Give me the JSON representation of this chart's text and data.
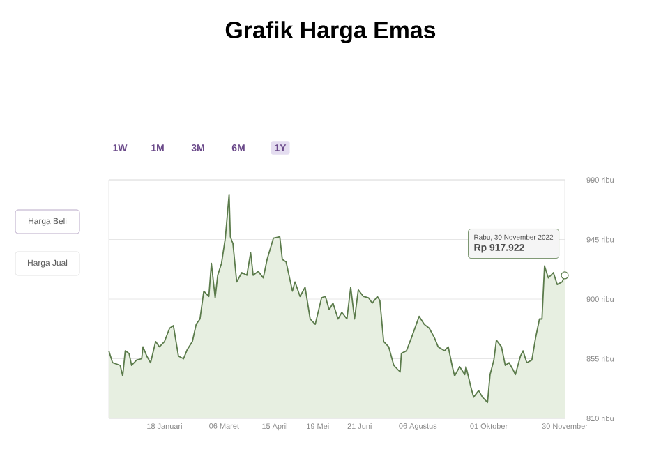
{
  "chart_data": {
    "type": "area",
    "title": "Grafik Harga Emas",
    "x": [
      "2021-12-05",
      "2021-12-08",
      "2021-12-14",
      "2021-12-16",
      "2021-12-18",
      "2021-12-21",
      "2021-12-23",
      "2021-12-27",
      "2021-12-31",
      "2022-01-01",
      "2022-01-04",
      "2022-01-07",
      "2022-01-11",
      "2022-01-14",
      "2022-01-18",
      "2022-01-22",
      "2022-01-25",
      "2022-01-29",
      "2022-02-02",
      "2022-02-05",
      "2022-02-09",
      "2022-02-12",
      "2022-02-15",
      "2022-02-18",
      "2022-02-22",
      "2022-02-24",
      "2022-02-27",
      "2022-03-01",
      "2022-03-04",
      "2022-03-07",
      "2022-03-10",
      "2022-03-11",
      "2022-03-13",
      "2022-03-16",
      "2022-03-20",
      "2022-03-24",
      "2022-03-27",
      "2022-03-29",
      "2022-04-02",
      "2022-04-06",
      "2022-04-09",
      "2022-04-14",
      "2022-04-19",
      "2022-04-21",
      "2022-04-24",
      "2022-04-29",
      "2022-05-01",
      "2022-05-05",
      "2022-05-09",
      "2022-05-13",
      "2022-05-17",
      "2022-05-22",
      "2022-05-25",
      "2022-05-28",
      "2022-05-31",
      "2022-06-04",
      "2022-06-07",
      "2022-06-11",
      "2022-06-14",
      "2022-06-17",
      "2022-06-20",
      "2022-06-24",
      "2022-06-28",
      "2022-07-01",
      "2022-07-05",
      "2022-07-07",
      "2022-07-10",
      "2022-07-14",
      "2022-07-18",
      "2022-07-23",
      "2022-07-24",
      "2022-07-28",
      "2022-08-01",
      "2022-08-07",
      "2022-08-11",
      "2022-08-15",
      "2022-08-19",
      "2022-08-22",
      "2022-08-27",
      "2022-08-30",
      "2022-09-02",
      "2022-09-04",
      "2022-09-08",
      "2022-09-12",
      "2022-09-13",
      "2022-09-17",
      "2022-09-19",
      "2022-09-23",
      "2022-09-26",
      "2022-09-30",
      "2022-10-02",
      "2022-10-05",
      "2022-10-07",
      "2022-10-11",
      "2022-10-14",
      "2022-10-17",
      "2022-10-20",
      "2022-10-22",
      "2022-10-26",
      "2022-10-28",
      "2022-10-31",
      "2022-11-04",
      "2022-11-07",
      "2022-11-10",
      "2022-11-12",
      "2022-11-14",
      "2022-11-17",
      "2022-11-21",
      "2022-11-24",
      "2022-11-28",
      "2022-11-30"
    ],
    "values": [
      861,
      852,
      850,
      842,
      861,
      859,
      850,
      854,
      855,
      864,
      857,
      852,
      868,
      864,
      868,
      878,
      880,
      857,
      855,
      862,
      868,
      881,
      885,
      906,
      902,
      927,
      901,
      918,
      927,
      946,
      979,
      947,
      942,
      913,
      920,
      918,
      935,
      918,
      921,
      916,
      930,
      946,
      947,
      930,
      928,
      906,
      913,
      902,
      909,
      885,
      881,
      901,
      902,
      892,
      897,
      885,
      890,
      885,
      909,
      885,
      907,
      902,
      901,
      897,
      902,
      899,
      868,
      864,
      850,
      845,
      859,
      861,
      871,
      887,
      881,
      878,
      871,
      864,
      861,
      864,
      850,
      842,
      849,
      843,
      849,
      833,
      826,
      831,
      826,
      822,
      843,
      854,
      869,
      864,
      850,
      852,
      847,
      843,
      857,
      861,
      852,
      854,
      871,
      885,
      885,
      925,
      916,
      920,
      911,
      913,
      917.922
    ],
    "color": "#5b7b4b",
    "xlim": [
      "2021-12-05",
      "2022-11-30"
    ],
    "xticks": [
      {
        "value": "2022-01-18",
        "label": "18 Januari"
      },
      {
        "value": "2022-03-06",
        "label": "06 Maret"
      },
      {
        "value": "2022-04-15",
        "label": "15 April"
      },
      {
        "value": "2022-05-19",
        "label": "19 Mei"
      },
      {
        "value": "2022-06-21",
        "label": "21 Juni"
      },
      {
        "value": "2022-08-06",
        "label": "06 Agustus"
      },
      {
        "value": "2022-10-01",
        "label": "01 Oktober"
      },
      {
        "value": "2022-11-30",
        "label": "30 November"
      }
    ],
    "ylim": [
      810,
      990
    ],
    "yticks": [
      {
        "value": 810,
        "label": "810 ribu"
      },
      {
        "value": 855,
        "label": "855 ribu"
      },
      {
        "value": 900,
        "label": "900 ribu"
      },
      {
        "value": 945,
        "label": "945 ribu"
      },
      {
        "value": 990,
        "label": "990 ribu"
      }
    ],
    "grid": "y",
    "annotations": [
      "Rabu, 30 November 2022",
      "Rp 917.922",
      "1W",
      "1M",
      "3M",
      "6M",
      "1Y",
      "Harga Beli",
      "Harga Jual"
    ]
  }
}
